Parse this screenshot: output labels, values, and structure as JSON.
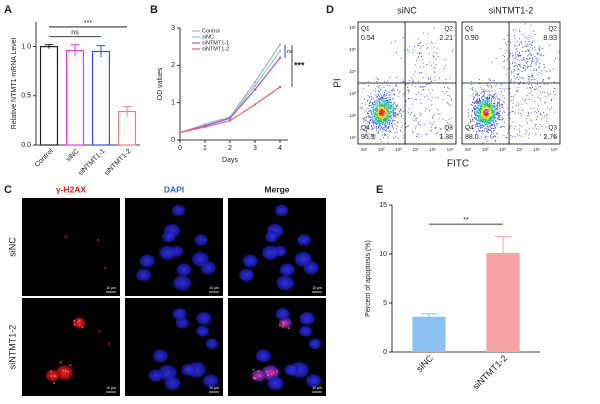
{
  "panel_labels": [
    "A",
    "B",
    "D",
    "C",
    "E"
  ],
  "chart_data": [
    {
      "type": "bar",
      "y_label": "Relative NTMT1 mRNA Level",
      "categories": [
        "Control",
        "siNC",
        "siNTMT1-1",
        "siNTMT1-2"
      ],
      "values": [
        1.0,
        0.96,
        0.95,
        0.34
      ],
      "errors": [
        0.02,
        0.06,
        0.06,
        0.05
      ],
      "colors": [
        "#222222",
        "#e040e0",
        "#3050e0",
        "#f08080"
      ],
      "filled": false,
      "ylim": [
        0,
        1.25
      ],
      "yticks": [
        {
          "value": 0,
          "label": "0.0"
        },
        {
          "value": 0.5,
          "label": "0.5"
        },
        {
          "value": 1,
          "label": "1.0"
        }
      ],
      "annotations": [
        "ns",
        "***"
      ]
    },
    {
      "type": "line",
      "x_label": "Days",
      "y_label": "OD values",
      "x": [
        0,
        1,
        2,
        3,
        4
      ],
      "xlim": [
        0,
        4
      ],
      "xticks": [
        0,
        1,
        2,
        3,
        4
      ],
      "ylim": [
        0,
        3
      ],
      "yticks": [
        0,
        1,
        2,
        3
      ],
      "series": [
        {
          "name": "Control",
          "color": "#b0b0b0",
          "values": [
            0.2,
            0.42,
            0.62,
            1.55,
            2.55
          ]
        },
        {
          "name": "siNC",
          "color": "#7fd0e0",
          "values": [
            0.2,
            0.4,
            0.6,
            1.45,
            2.38
          ]
        },
        {
          "name": "siNTMT1-1",
          "color": "#b050d0",
          "values": [
            0.2,
            0.38,
            0.58,
            1.35,
            2.2
          ]
        },
        {
          "name": "siNTMT1-2",
          "color": "#f06070",
          "values": [
            0.2,
            0.35,
            0.52,
            0.95,
            1.42
          ]
        }
      ],
      "annotations": [
        "ns",
        "***"
      ]
    },
    {
      "type": "bar",
      "y_label": "Percent of apoptosis (%)",
      "categories": [
        "siNC",
        "siNTMT1-2"
      ],
      "values": [
        3.6,
        10.1
      ],
      "errors": [
        0.3,
        1.7
      ],
      "colors": [
        "#8ec0f2",
        "#f5a3a3"
      ],
      "filled": true,
      "ylim": [
        0,
        15
      ],
      "yticks": [
        0,
        5,
        10,
        15
      ],
      "annotations": [
        "**"
      ]
    }
  ],
  "flow": {
    "y_label": "PI",
    "x_label": "FITC",
    "axis_ticks": [
      "10¹",
      "10²",
      "10³",
      "10⁴",
      "10⁵",
      "10⁶"
    ],
    "plots": [
      {
        "title": "siNC",
        "quadrants": [
          {
            "name": "Q1",
            "value": "0.54"
          },
          {
            "name": "Q2",
            "value": "2.21"
          },
          {
            "name": "Q3",
            "value": "1.38"
          },
          {
            "name": "Q4",
            "value": "95.9"
          }
        ]
      },
      {
        "title": "siNTMT1-2",
        "quadrants": [
          {
            "name": "Q1",
            "value": "0.90"
          },
          {
            "name": "Q2",
            "value": "8.33"
          },
          {
            "name": "Q3",
            "value": "2.76"
          },
          {
            "name": "Q4",
            "value": "88.0"
          }
        ]
      }
    ]
  },
  "microscopy": {
    "columns": [
      "γ-H2AX",
      "DAPI",
      "Merge"
    ],
    "rows": [
      "siNC",
      "siNTMT1-2"
    ],
    "scale_bar": "10 μm"
  }
}
